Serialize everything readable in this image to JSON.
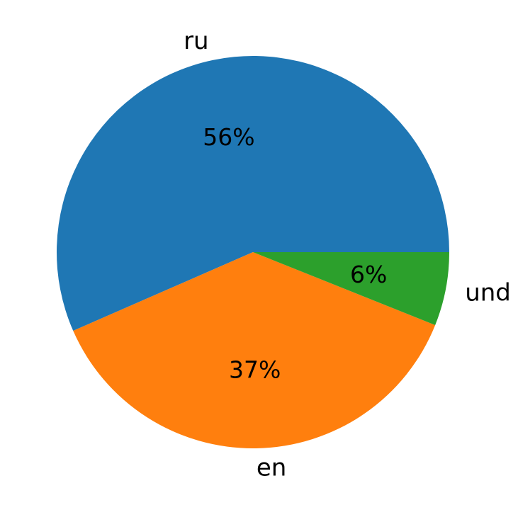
{
  "chart_data": {
    "type": "pie",
    "labels": [
      "ru",
      "en",
      "und"
    ],
    "values": [
      56,
      37,
      6
    ],
    "value_labels": [
      "56%",
      "37%",
      "6%"
    ],
    "colors": [
      "#1f77b4",
      "#ff7f0e",
      "#2ca02c"
    ],
    "start_angle_deg": 0,
    "direction": "counterclockwise",
    "title": ""
  }
}
